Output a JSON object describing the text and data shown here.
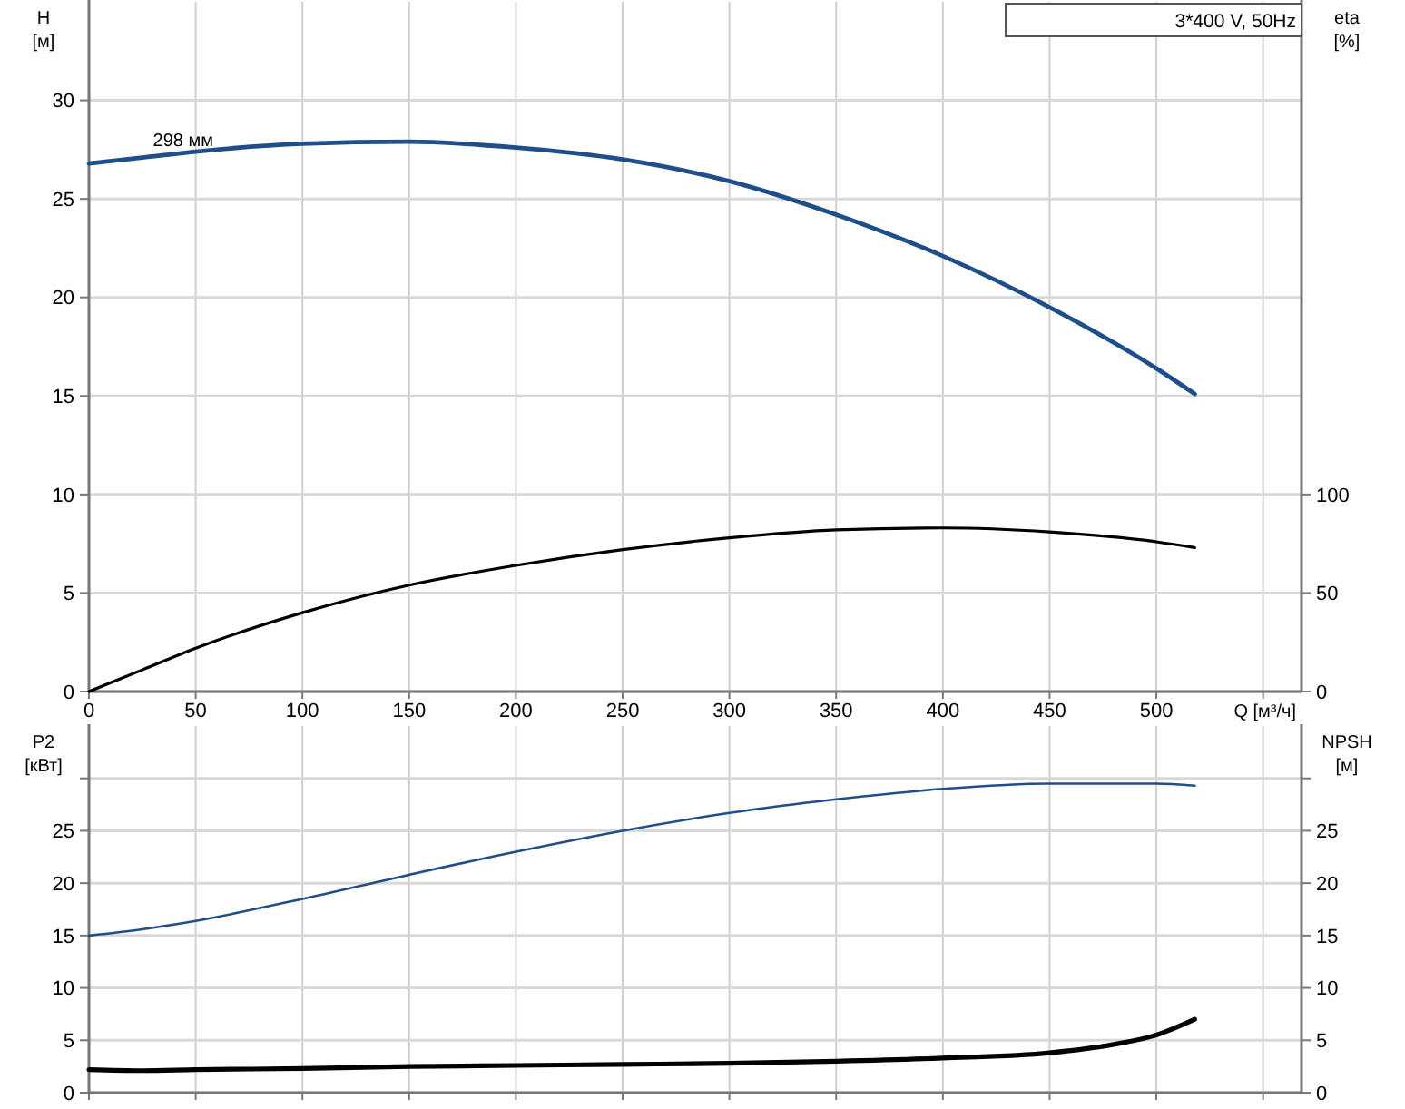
{
  "chart_data": [
    {
      "type": "line",
      "title": "3*400 V, 50Hz",
      "xlabel": "Q [м³/ч]",
      "ylabel": "H [м]",
      "y2label": "eta [%]",
      "grid": true,
      "xlim": [
        0,
        568
      ],
      "xticks": [
        0,
        50,
        100,
        150,
        200,
        250,
        300,
        350,
        400,
        450,
        500,
        {
          "value": 550,
          "label": null
        }
      ],
      "ylim": [
        0,
        35
      ],
      "yticks": [
        0,
        5,
        10,
        15,
        20,
        25,
        30
      ],
      "y2lim": [
        0,
        350
      ],
      "y2ticks": [
        0,
        50,
        100
      ],
      "annotations": [
        {
          "text": "298 мм",
          "x": 30,
          "y": 27.6
        }
      ],
      "series": [
        {
          "color": "#1f4f8a",
          "x": [
            0,
            25,
            50,
            100,
            150,
            200,
            250,
            300,
            350,
            400,
            450,
            500,
            518
          ],
          "values": [
            26.8,
            27.1,
            27.4,
            27.8,
            27.9,
            27.6,
            27.0,
            25.9,
            24.2,
            22.1,
            19.5,
            16.4,
            15.1
          ]
        },
        {
          "color": "#000000",
          "axis": "y2",
          "x": [
            0,
            25,
            50,
            100,
            150,
            200,
            250,
            300,
            350,
            400,
            450,
            500,
            518
          ],
          "values": [
            0,
            11,
            22,
            40,
            54,
            64,
            72,
            78,
            82,
            83,
            81,
            76,
            73
          ]
        }
      ]
    },
    {
      "type": "line",
      "ylabel": "P2 [кВт]",
      "y2label": "NPSH [м]",
      "grid": true,
      "tick_labels": "y",
      "xlim": [
        0,
        568
      ],
      "xticks": [
        0,
        50,
        100,
        150,
        200,
        250,
        300,
        350,
        400,
        450,
        500,
        550
      ],
      "ylim": [
        0,
        35
      ],
      "yticks": [
        0,
        5,
        10,
        15,
        20,
        25,
        {
          "value": 30,
          "label": null
        }
      ],
      "y2lim": [
        0,
        35
      ],
      "y2ticks": [
        0,
        5,
        10,
        15,
        20,
        25,
        {
          "value": 30,
          "label": null
        }
      ],
      "series": [
        {
          "color": "#1f4f8a",
          "x": [
            0,
            25,
            50,
            100,
            150,
            200,
            250,
            300,
            350,
            400,
            450,
            500,
            518
          ],
          "values": [
            15,
            15.6,
            16.4,
            18.5,
            20.8,
            23.0,
            25.0,
            26.7,
            28.0,
            29.0,
            29.5,
            29.5,
            29.3
          ]
        },
        {
          "color": "#000000",
          "axis": "y2",
          "x": [
            0,
            25,
            50,
            100,
            150,
            200,
            250,
            300,
            350,
            400,
            450,
            480,
            500,
            518
          ],
          "values": [
            2.2,
            2.1,
            2.2,
            2.3,
            2.5,
            2.6,
            2.7,
            2.8,
            3.0,
            3.3,
            3.8,
            4.6,
            5.5,
            7.0
          ]
        }
      ]
    }
  ]
}
